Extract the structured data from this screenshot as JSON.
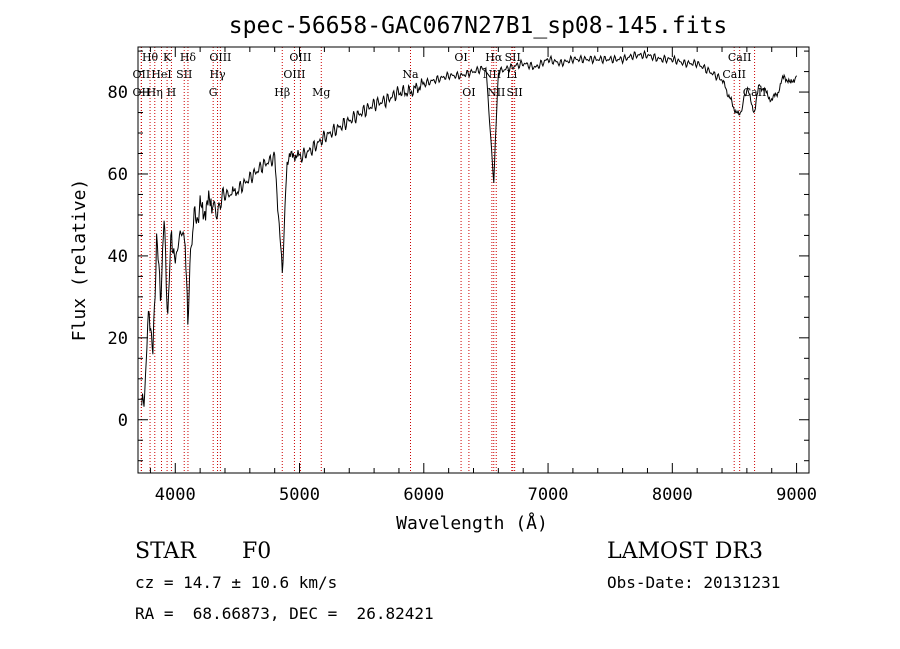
{
  "chart_data": {
    "type": "line",
    "title": "spec-56658-GAC067N27B1_sp08-145.fits",
    "xlabel": "Wavelength (Å)",
    "ylabel": "Flux (relative)",
    "xlim": [
      3700,
      9100
    ],
    "ylim": [
      -13,
      91
    ],
    "xticks": [
      4000,
      5000,
      6000,
      7000,
      8000,
      9000
    ],
    "yticks": [
      0,
      20,
      40,
      60,
      80
    ],
    "grid": false,
    "series": [
      {
        "name": "spectrum",
        "x": [
          3730,
          3760,
          3790,
          3820,
          3850,
          3880,
          3910,
          3940,
          3970,
          4000,
          4040,
          4080,
          4101,
          4140,
          4200,
          4250,
          4300,
          4340,
          4380,
          4450,
          4500,
          4600,
          4700,
          4800,
          4861,
          4900,
          4950,
          5000,
          5100,
          5200,
          5300,
          5400,
          5500,
          5600,
          5700,
          5800,
          5890,
          6000,
          6100,
          6200,
          6300,
          6400,
          6500,
          6563,
          6600,
          6700,
          6800,
          6900,
          7000,
          7100,
          7200,
          7300,
          7400,
          7500,
          7600,
          7700,
          7800,
          7900,
          8000,
          8100,
          8200,
          8300,
          8400,
          8498,
          8542,
          8600,
          8662,
          8700,
          8750,
          8800,
          8850,
          8900,
          8950,
          9000
        ],
        "y": [
          2,
          10,
          28,
          15,
          45,
          30,
          48,
          26,
          46,
          38,
          46,
          44,
          25,
          48,
          51,
          52,
          53,
          50,
          55,
          55,
          56,
          59,
          62,
          64,
          36,
          63,
          65,
          64,
          66,
          69,
          71,
          73,
          75,
          77,
          78,
          80,
          80,
          82,
          83,
          84,
          84,
          85,
          86,
          58,
          85,
          86,
          87,
          86,
          88,
          87,
          88,
          88,
          88,
          88,
          88,
          89,
          89,
          88,
          88,
          87,
          87,
          85,
          83,
          76,
          74,
          81,
          75,
          82,
          80,
          78,
          80,
          84,
          82,
          84
        ]
      }
    ],
    "lines": [
      {
        "name": "Hθ",
        "wl": 3797,
        "pos": "top"
      },
      {
        "name": "OII",
        "wl": 3727,
        "pos": "mid"
      },
      {
        "name": "OII",
        "wl": 3727,
        "pos": "low"
      },
      {
        "name": "HeI",
        "wl": 3889,
        "pos": "mid"
      },
      {
        "name": "K",
        "wl": 3934,
        "pos": "top"
      },
      {
        "name": "Hη",
        "wl": 3835,
        "pos": "low"
      },
      {
        "name": "Hδ",
        "wl": 4102,
        "pos": "top"
      },
      {
        "name": "SII",
        "wl": 4072,
        "pos": "mid"
      },
      {
        "name": "H",
        "wl": 3969,
        "pos": "low"
      },
      {
        "name": "OIII",
        "wl": 4363,
        "pos": "top"
      },
      {
        "name": "Hγ",
        "wl": 4340,
        "pos": "mid"
      },
      {
        "name": "G",
        "wl": 4305,
        "pos": "low"
      },
      {
        "name": "Hβ",
        "wl": 4861,
        "pos": "low"
      },
      {
        "name": "OIII",
        "wl": 5007,
        "pos": "top"
      },
      {
        "name": "OIII",
        "wl": 4959,
        "pos": "mid"
      },
      {
        "name": "Mg",
        "wl": 5175,
        "pos": "low"
      },
      {
        "name": "Na",
        "wl": 5893,
        "pos": "mid"
      },
      {
        "name": "OI",
        "wl": 6300,
        "pos": "top"
      },
      {
        "name": "OI",
        "wl": 6363,
        "pos": "low"
      },
      {
        "name": "Hα",
        "wl": 6563,
        "pos": "top"
      },
      {
        "name": "SII",
        "wl": 6716,
        "pos": "top"
      },
      {
        "name": "NII",
        "wl": 6548,
        "pos": "mid"
      },
      {
        "name": "Li",
        "wl": 6708,
        "pos": "mid"
      },
      {
        "name": "NII",
        "wl": 6583,
        "pos": "low"
      },
      {
        "name": "SII",
        "wl": 6731,
        "pos": "low"
      },
      {
        "name": "CaII",
        "wl": 8542,
        "pos": "top"
      },
      {
        "name": "CaII",
        "wl": 8498,
        "pos": "mid"
      },
      {
        "name": "CaII",
        "wl": 8662,
        "pos": "low"
      }
    ]
  },
  "info": {
    "object_class": "STAR",
    "subclass": "F0",
    "survey": "LAMOST DR3",
    "redshift": "cz = 14.7 ± 10.6 km/s",
    "obs_date": "Obs-Date: 20131231",
    "coords": "RA =  68.66873, DEC =  26.82421"
  }
}
